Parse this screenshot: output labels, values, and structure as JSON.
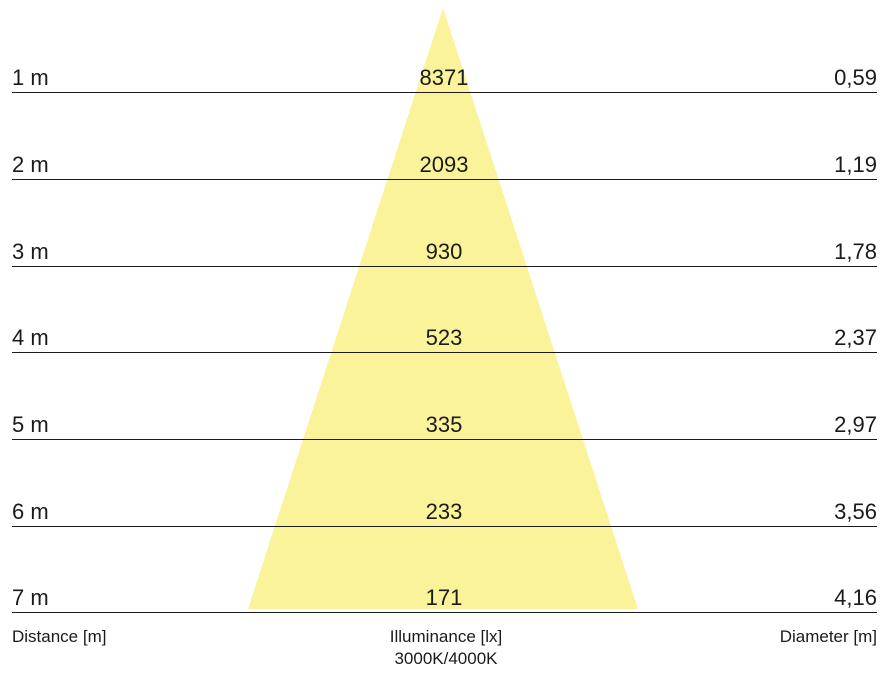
{
  "beam_color": "#fbf39a",
  "rows": [
    {
      "distance": "1 m",
      "illuminance": "8371",
      "diameter": "0,59"
    },
    {
      "distance": "2 m",
      "illuminance": "2093",
      "diameter": "1,19"
    },
    {
      "distance": "3 m",
      "illuminance": "930",
      "diameter": "1,78"
    },
    {
      "distance": "4 m",
      "illuminance": "523",
      "diameter": "2,37"
    },
    {
      "distance": "5 m",
      "illuminance": "335",
      "diameter": "2,97"
    },
    {
      "distance": "6 m",
      "illuminance": "233",
      "diameter": "3,56"
    },
    {
      "distance": "7 m",
      "illuminance": "171",
      "diameter": "4,16"
    }
  ],
  "footer": {
    "distance_label": "Distance [m]",
    "illuminance_label": "Illuminance [lx]",
    "color_temp": "3000K/4000K",
    "diameter_label": "Diameter [m]"
  }
}
